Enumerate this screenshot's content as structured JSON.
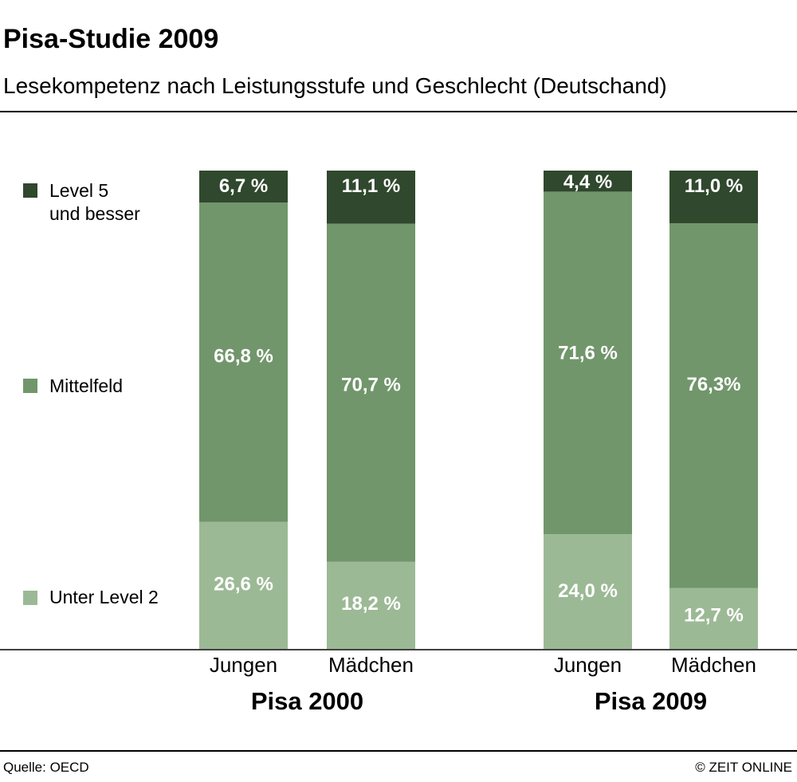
{
  "header": {
    "title": "Pisa-Studie 2009",
    "subtitle": "Lesekompetenz nach Leistungsstufe und Geschlecht (Deutschand)"
  },
  "footer": {
    "source": "Quelle: OECD",
    "credit": "© ZEIT ONLINE"
  },
  "chart_data": {
    "type": "bar",
    "stacked": true,
    "title": "Pisa-Studie 2009",
    "subtitle": "Lesekompetenz nach Leistungsstufe und Geschlecht (Deutschand)",
    "groups": [
      "Pisa 2000",
      "Pisa 2009"
    ],
    "categories": [
      "Jungen",
      "Mädchen",
      "Jungen",
      "Mädchen"
    ],
    "category_groups": [
      0,
      0,
      1,
      1
    ],
    "ylim": [
      0,
      100
    ],
    "grid": false,
    "legend_position": "left",
    "series": [
      {
        "name": "Unter Level 2",
        "color": "#9cb995",
        "values": [
          26.6,
          18.2,
          24.0,
          12.7
        ],
        "labels": [
          "26,6 %",
          "18,2 %",
          "24,0 %",
          "12,7 %"
        ]
      },
      {
        "name": "Mittelfeld",
        "color": "#71966b",
        "values": [
          66.8,
          70.7,
          71.6,
          76.3
        ],
        "labels": [
          "66,8 %",
          "70,7 %",
          "71,6 %",
          "76,3%"
        ]
      },
      {
        "name": "Level 5 und besser",
        "legend_lines": [
          "Level 5",
          "und besser"
        ],
        "color": "#30482d",
        "values": [
          6.7,
          11.1,
          4.4,
          11.0
        ],
        "labels": [
          "6,7 %",
          "11,1 %",
          "4,4 %",
          "11,0 %"
        ]
      }
    ]
  }
}
